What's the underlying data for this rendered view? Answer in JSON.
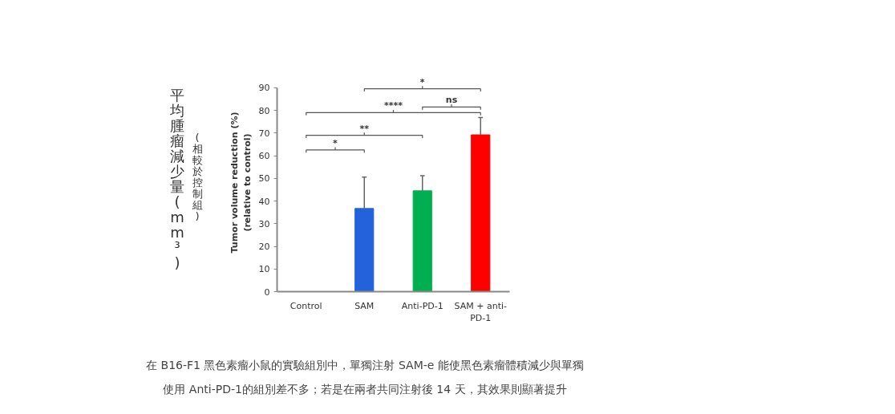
{
  "chart_data": {
    "type": "bar",
    "ylabel": "Tumor volume reduction (%)\n(relative to control)",
    "categories": [
      "Control",
      "SAM",
      "Anti-PD-1",
      "SAM + anti-PD-1"
    ],
    "values": [
      0,
      36.7,
      44.5,
      69.2
    ],
    "colors": [
      "#2462dc",
      "#2462dc",
      "#00b050",
      "#ff0000"
    ],
    "errors": [
      null,
      [
        36.7,
        50.5
      ],
      [
        44.5,
        51.2
      ],
      [
        69.2,
        76.8
      ]
    ],
    "ylim": [
      0,
      90
    ],
    "yticks": [
      0,
      10,
      20,
      30,
      40,
      50,
      60,
      70,
      80,
      90
    ],
    "grid": false,
    "annotations": [
      "平均腫瘤減少量(mm³)",
      "(相較於控制組)",
      "*",
      "**",
      "****",
      "ns",
      "*",
      "在 B16-F1 黑色素瘤小鼠的實驗組別中，單獨注射 SAM-e 能使黑色素瘤體積減少與單獨",
      "使用 Anti-PD-1的組別差不多；若是在兩者共同注射後 14 天，其效果則顯著提升"
    ]
  }
}
